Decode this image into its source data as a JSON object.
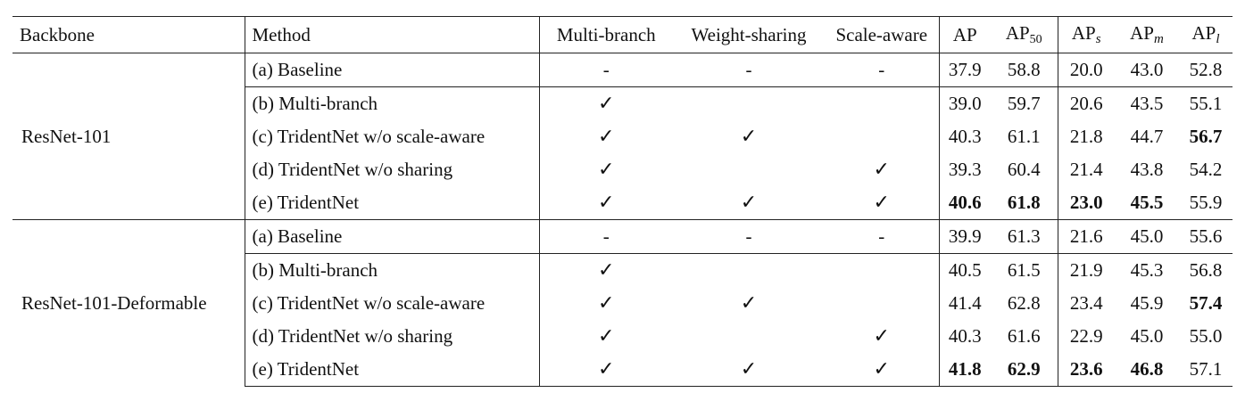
{
  "table": {
    "headers": {
      "backbone": "Backbone",
      "method": "Method",
      "multi_branch": "Multi-branch",
      "weight_sharing": "Weight-sharing",
      "scale_aware": "Scale-aware",
      "ap": "AP",
      "ap50_base": "AP",
      "ap50_sub": "50",
      "aps_base": "AP",
      "aps_sub": "s",
      "apm_base": "AP",
      "apm_sub": "m",
      "apl_base": "AP",
      "apl_sub": "l"
    },
    "groups": [
      {
        "backbone": "ResNet-101",
        "rows": [
          {
            "method": "(a) Baseline",
            "mb": "-",
            "ws": "-",
            "sa": "-",
            "ap": "37.9",
            "ap50": "58.8",
            "aps": "20.0",
            "apm": "43.0",
            "apl": "52.8",
            "bold": []
          },
          {
            "method": "(b) Multi-branch",
            "mb": "✓",
            "ws": "",
            "sa": "",
            "ap": "39.0",
            "ap50": "59.7",
            "aps": "20.6",
            "apm": "43.5",
            "apl": "55.1",
            "bold": []
          },
          {
            "method": "(c) TridentNet w/o scale-aware",
            "mb": "✓",
            "ws": "✓",
            "sa": "",
            "ap": "40.3",
            "ap50": "61.1",
            "aps": "21.8",
            "apm": "44.7",
            "apl": "56.7",
            "bold": [
              "apl"
            ]
          },
          {
            "method": "(d) TridentNet w/o sharing",
            "mb": "✓",
            "ws": "",
            "sa": "✓",
            "ap": "39.3",
            "ap50": "60.4",
            "aps": "21.4",
            "apm": "43.8",
            "apl": "54.2",
            "bold": []
          },
          {
            "method": "(e) TridentNet",
            "mb": "✓",
            "ws": "✓",
            "sa": "✓",
            "ap": "40.6",
            "ap50": "61.8",
            "aps": "23.0",
            "apm": "45.5",
            "apl": "55.9",
            "bold": [
              "ap",
              "ap50",
              "aps",
              "apm"
            ]
          }
        ]
      },
      {
        "backbone": "ResNet-101-Deformable",
        "rows": [
          {
            "method": "(a) Baseline",
            "mb": "-",
            "ws": "-",
            "sa": "-",
            "ap": "39.9",
            "ap50": "61.3",
            "aps": "21.6",
            "apm": "45.0",
            "apl": "55.6",
            "bold": []
          },
          {
            "method": "(b) Multi-branch",
            "mb": "✓",
            "ws": "",
            "sa": "",
            "ap": "40.5",
            "ap50": "61.5",
            "aps": "21.9",
            "apm": "45.3",
            "apl": "56.8",
            "bold": []
          },
          {
            "method": "(c) TridentNet w/o scale-aware",
            "mb": "✓",
            "ws": "✓",
            "sa": "",
            "ap": "41.4",
            "ap50": "62.8",
            "aps": "23.4",
            "apm": "45.9",
            "apl": "57.4",
            "bold": [
              "apl"
            ]
          },
          {
            "method": "(d) TridentNet w/o sharing",
            "mb": "✓",
            "ws": "",
            "sa": "✓",
            "ap": "40.3",
            "ap50": "61.6",
            "aps": "22.9",
            "apm": "45.0",
            "apl": "55.0",
            "bold": []
          },
          {
            "method": "(e) TridentNet",
            "mb": "✓",
            "ws": "✓",
            "sa": "✓",
            "ap": "41.8",
            "ap50": "62.9",
            "aps": "23.6",
            "apm": "46.8",
            "apl": "57.1",
            "bold": [
              "ap",
              "ap50",
              "aps",
              "apm"
            ]
          }
        ]
      }
    ]
  }
}
